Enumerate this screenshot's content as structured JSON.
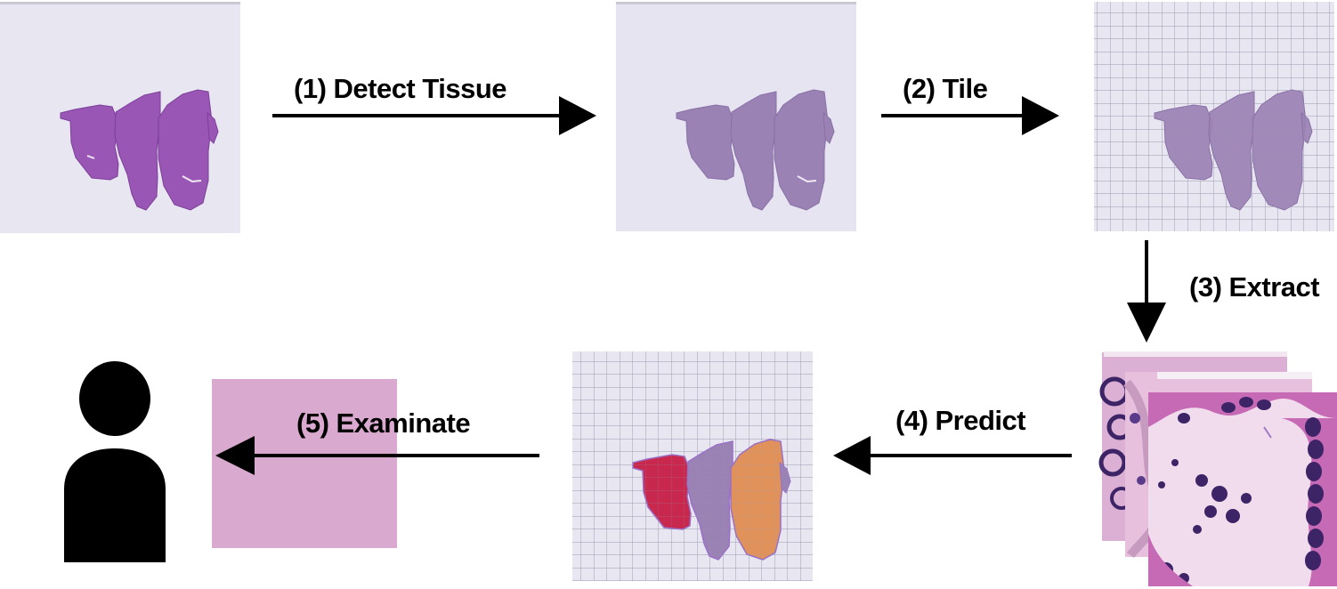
{
  "steps": [
    {
      "label": "(1) Detect Tissue"
    },
    {
      "label": "(2) Tile"
    },
    {
      "label": "(3) Extract"
    },
    {
      "label": "(4) Predict"
    },
    {
      "label": "(5) Examinate"
    }
  ],
  "colors": {
    "slide_background": "#e7e6f1",
    "tissue_raw": "#9a56b4",
    "tissue_detected": "#9a82b4",
    "grid_line": "#9a98b0",
    "prediction_red": "#c8284e",
    "prediction_orange": "#e0925a",
    "patch_pink": "#e6b3d3",
    "nuclei": "#3c2466",
    "arrow": "#000000",
    "person": "#000000"
  },
  "icons": {
    "person": "person-silhouette-icon"
  }
}
